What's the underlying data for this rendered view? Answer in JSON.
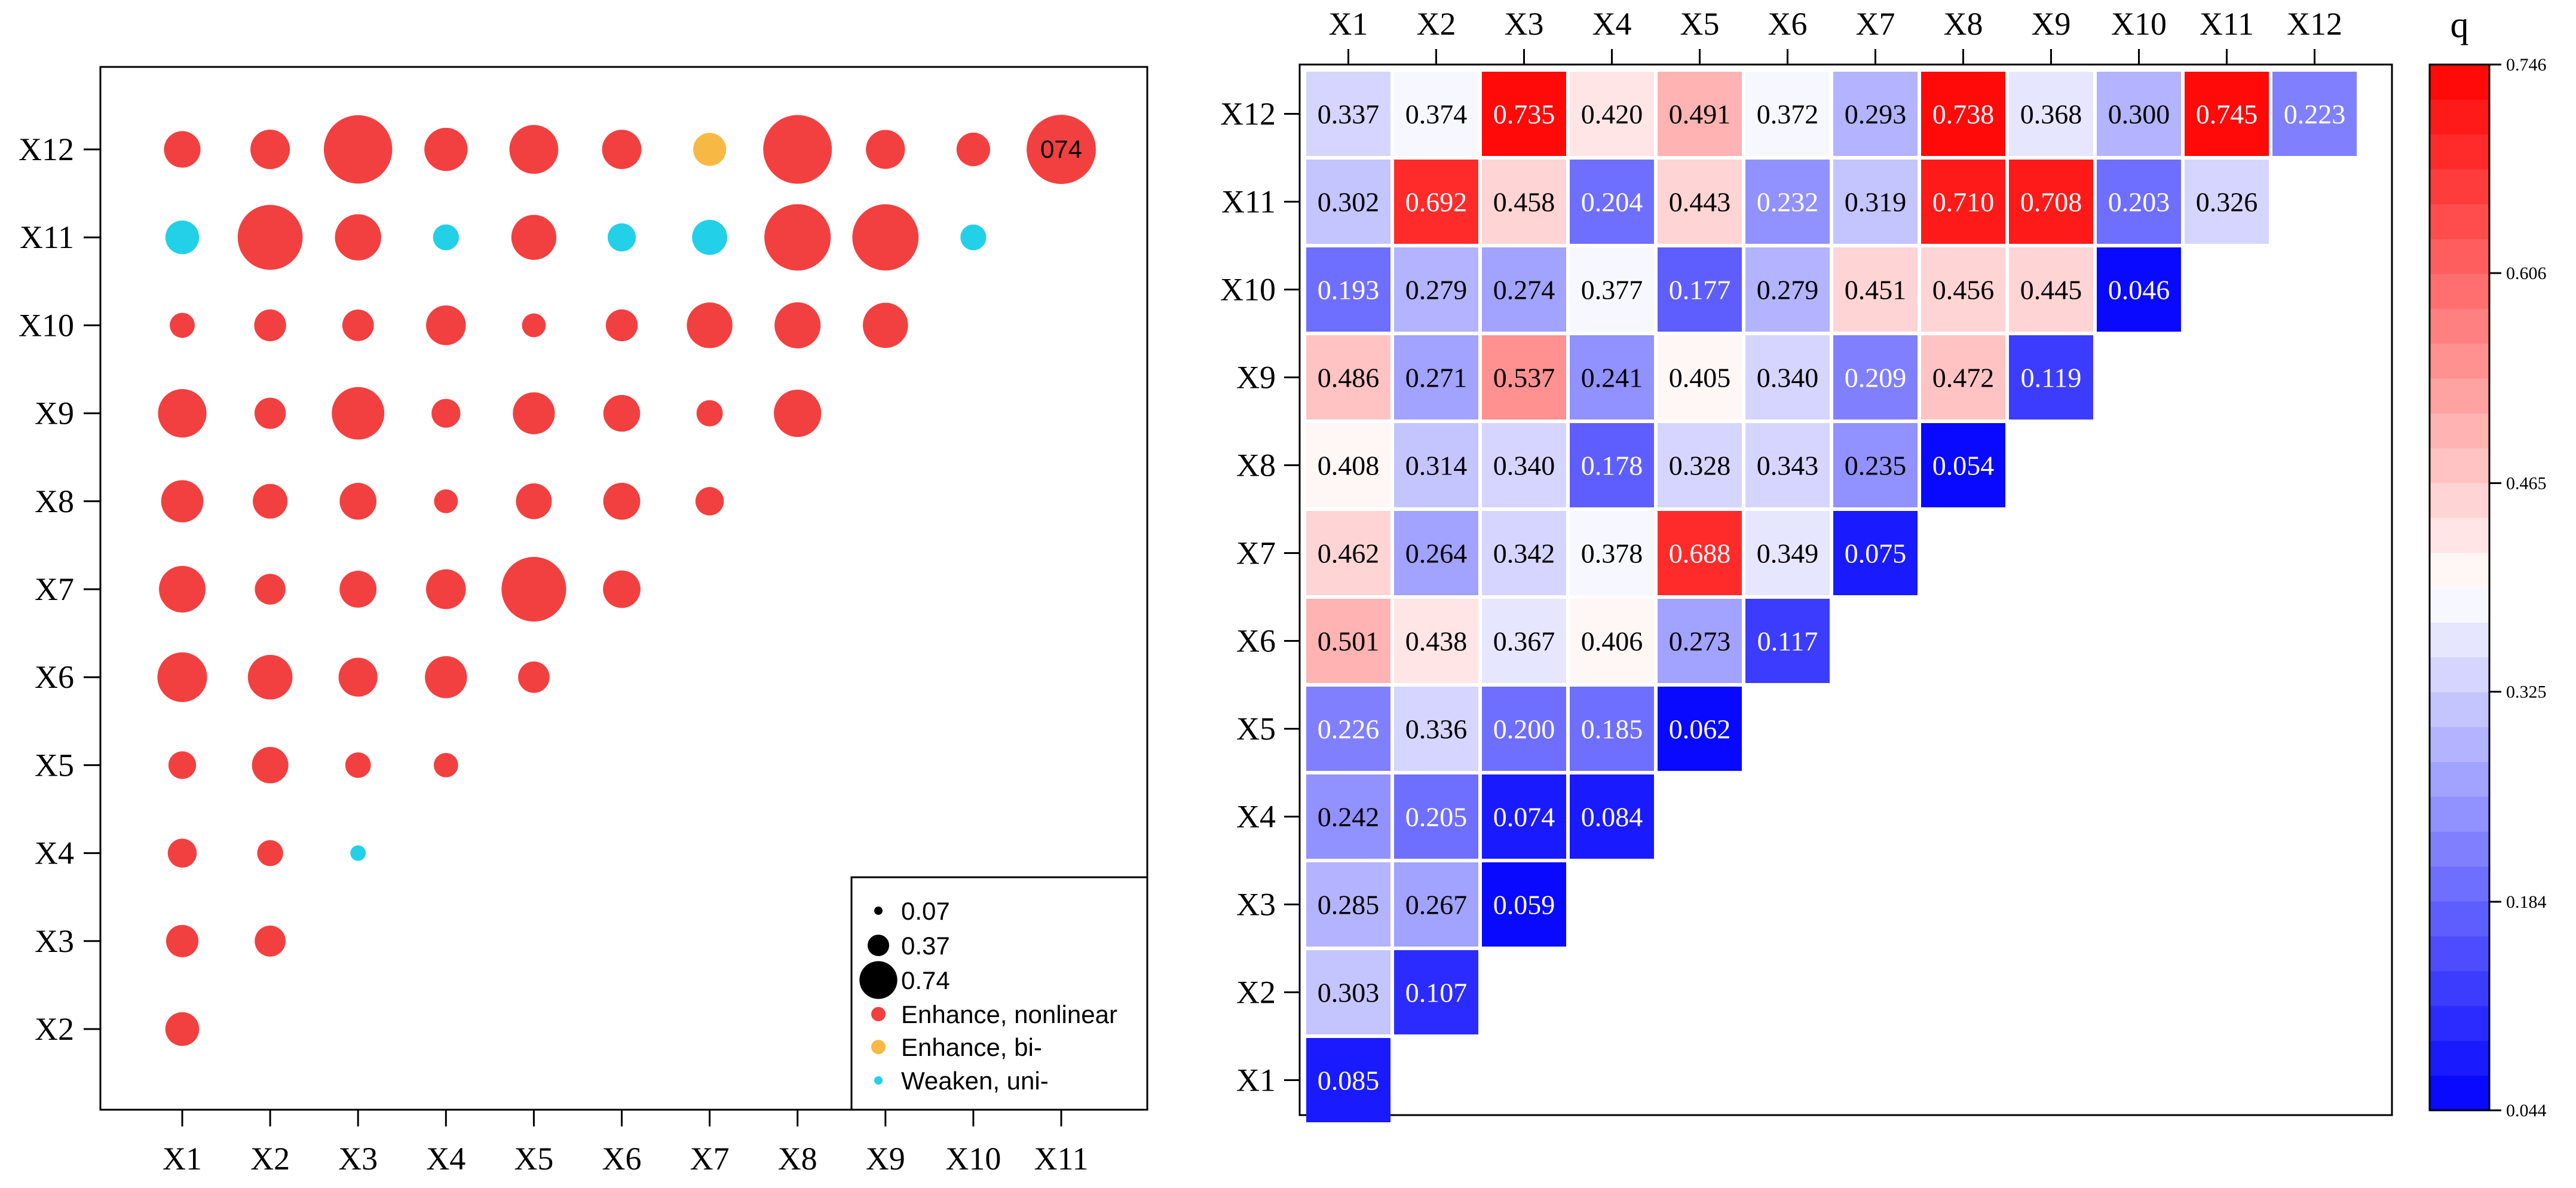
{
  "chart_data": [
    {
      "type": "scatter",
      "title": "",
      "subtype": "bubble interaction matrix",
      "x_labels": [
        "X1",
        "X2",
        "X3",
        "X4",
        "X5",
        "X6",
        "X7",
        "X8",
        "X9",
        "X10",
        "X11"
      ],
      "y_labels": [
        "X2",
        "X3",
        "X4",
        "X5",
        "X6",
        "X7",
        "X8",
        "X9",
        "X10",
        "X11",
        "X12"
      ],
      "categories": [
        {
          "key": "nonlinear",
          "label": "Enhance, nonlinear",
          "color": "#f24040"
        },
        {
          "key": "bi",
          "label": "Enhance, bi-",
          "color": "#f7b944"
        },
        {
          "key": "uni",
          "label": "Weaken, uni-",
          "color": "#22d0e8"
        }
      ],
      "size_legend": [
        {
          "label": "0.07",
          "value": 0.07
        },
        {
          "label": "0.37",
          "value": 0.37
        },
        {
          "label": "0.74",
          "value": 0.74
        }
      ],
      "annotation": {
        "text": "074",
        "x": "X11",
        "y": "X12"
      },
      "points": [
        {
          "x": "X1",
          "y": "X12",
          "v": 0.337,
          "c": "nonlinear"
        },
        {
          "x": "X2",
          "y": "X12",
          "v": 0.374,
          "c": "nonlinear"
        },
        {
          "x": "X3",
          "y": "X12",
          "v": 0.735,
          "c": "nonlinear"
        },
        {
          "x": "X4",
          "y": "X12",
          "v": 0.42,
          "c": "nonlinear"
        },
        {
          "x": "X5",
          "y": "X12",
          "v": 0.491,
          "c": "nonlinear"
        },
        {
          "x": "X6",
          "y": "X12",
          "v": 0.372,
          "c": "nonlinear"
        },
        {
          "x": "X7",
          "y": "X12",
          "v": 0.293,
          "c": "bi"
        },
        {
          "x": "X8",
          "y": "X12",
          "v": 0.738,
          "c": "nonlinear"
        },
        {
          "x": "X9",
          "y": "X12",
          "v": 0.368,
          "c": "nonlinear"
        },
        {
          "x": "X10",
          "y": "X12",
          "v": 0.3,
          "c": "nonlinear"
        },
        {
          "x": "X11",
          "y": "X12",
          "v": 0.745,
          "c": "nonlinear"
        },
        {
          "x": "X1",
          "y": "X11",
          "v": 0.302,
          "c": "uni"
        },
        {
          "x": "X2",
          "y": "X11",
          "v": 0.692,
          "c": "nonlinear"
        },
        {
          "x": "X3",
          "y": "X11",
          "v": 0.458,
          "c": "nonlinear"
        },
        {
          "x": "X4",
          "y": "X11",
          "v": 0.204,
          "c": "uni"
        },
        {
          "x": "X5",
          "y": "X11",
          "v": 0.443,
          "c": "nonlinear"
        },
        {
          "x": "X6",
          "y": "X11",
          "v": 0.232,
          "c": "uni"
        },
        {
          "x": "X7",
          "y": "X11",
          "v": 0.319,
          "c": "uni"
        },
        {
          "x": "X8",
          "y": "X11",
          "v": 0.71,
          "c": "nonlinear"
        },
        {
          "x": "X9",
          "y": "X11",
          "v": 0.708,
          "c": "nonlinear"
        },
        {
          "x": "X10",
          "y": "X11",
          "v": 0.203,
          "c": "uni"
        },
        {
          "x": "X1",
          "y": "X10",
          "v": 0.193,
          "c": "nonlinear"
        },
        {
          "x": "X2",
          "y": "X10",
          "v": 0.279,
          "c": "nonlinear"
        },
        {
          "x": "X3",
          "y": "X10",
          "v": 0.274,
          "c": "nonlinear"
        },
        {
          "x": "X4",
          "y": "X10",
          "v": 0.377,
          "c": "nonlinear"
        },
        {
          "x": "X5",
          "y": "X10",
          "v": 0.177,
          "c": "nonlinear"
        },
        {
          "x": "X6",
          "y": "X10",
          "v": 0.279,
          "c": "nonlinear"
        },
        {
          "x": "X7",
          "y": "X10",
          "v": 0.451,
          "c": "nonlinear"
        },
        {
          "x": "X8",
          "y": "X10",
          "v": 0.456,
          "c": "nonlinear"
        },
        {
          "x": "X9",
          "y": "X10",
          "v": 0.445,
          "c": "nonlinear"
        },
        {
          "x": "X1",
          "y": "X9",
          "v": 0.486,
          "c": "nonlinear"
        },
        {
          "x": "X2",
          "y": "X9",
          "v": 0.271,
          "c": "nonlinear"
        },
        {
          "x": "X3",
          "y": "X9",
          "v": 0.537,
          "c": "nonlinear"
        },
        {
          "x": "X4",
          "y": "X9",
          "v": 0.241,
          "c": "nonlinear"
        },
        {
          "x": "X5",
          "y": "X9",
          "v": 0.405,
          "c": "nonlinear"
        },
        {
          "x": "X6",
          "y": "X9",
          "v": 0.34,
          "c": "nonlinear"
        },
        {
          "x": "X7",
          "y": "X9",
          "v": 0.209,
          "c": "nonlinear"
        },
        {
          "x": "X8",
          "y": "X9",
          "v": 0.472,
          "c": "nonlinear"
        },
        {
          "x": "X1",
          "y": "X8",
          "v": 0.408,
          "c": "nonlinear"
        },
        {
          "x": "X2",
          "y": "X8",
          "v": 0.314,
          "c": "nonlinear"
        },
        {
          "x": "X3",
          "y": "X8",
          "v": 0.34,
          "c": "nonlinear"
        },
        {
          "x": "X4",
          "y": "X8",
          "v": 0.178,
          "c": "nonlinear"
        },
        {
          "x": "X5",
          "y": "X8",
          "v": 0.328,
          "c": "nonlinear"
        },
        {
          "x": "X6",
          "y": "X8",
          "v": 0.343,
          "c": "nonlinear"
        },
        {
          "x": "X7",
          "y": "X8",
          "v": 0.235,
          "c": "nonlinear"
        },
        {
          "x": "X1",
          "y": "X7",
          "v": 0.462,
          "c": "nonlinear"
        },
        {
          "x": "X2",
          "y": "X7",
          "v": 0.264,
          "c": "nonlinear"
        },
        {
          "x": "X3",
          "y": "X7",
          "v": 0.342,
          "c": "nonlinear"
        },
        {
          "x": "X4",
          "y": "X7",
          "v": 0.378,
          "c": "nonlinear"
        },
        {
          "x": "X5",
          "y": "X7",
          "v": 0.688,
          "c": "nonlinear"
        },
        {
          "x": "X6",
          "y": "X7",
          "v": 0.349,
          "c": "nonlinear"
        },
        {
          "x": "X1",
          "y": "X6",
          "v": 0.501,
          "c": "nonlinear"
        },
        {
          "x": "X2",
          "y": "X6",
          "v": 0.438,
          "c": "nonlinear"
        },
        {
          "x": "X3",
          "y": "X6",
          "v": 0.367,
          "c": "nonlinear"
        },
        {
          "x": "X4",
          "y": "X6",
          "v": 0.406,
          "c": "nonlinear"
        },
        {
          "x": "X5",
          "y": "X6",
          "v": 0.273,
          "c": "nonlinear"
        },
        {
          "x": "X1",
          "y": "X5",
          "v": 0.226,
          "c": "nonlinear"
        },
        {
          "x": "X2",
          "y": "X5",
          "v": 0.336,
          "c": "nonlinear"
        },
        {
          "x": "X3",
          "y": "X5",
          "v": 0.2,
          "c": "nonlinear"
        },
        {
          "x": "X4",
          "y": "X5",
          "v": 0.185,
          "c": "nonlinear"
        },
        {
          "x": "X1",
          "y": "X4",
          "v": 0.242,
          "c": "nonlinear"
        },
        {
          "x": "X2",
          "y": "X4",
          "v": 0.205,
          "c": "nonlinear"
        },
        {
          "x": "X3",
          "y": "X4",
          "v": 0.074,
          "c": "uni"
        },
        {
          "x": "X1",
          "y": "X3",
          "v": 0.285,
          "c": "nonlinear"
        },
        {
          "x": "X2",
          "y": "X3",
          "v": 0.267,
          "c": "nonlinear"
        },
        {
          "x": "X1",
          "y": "X2",
          "v": 0.303,
          "c": "nonlinear"
        }
      ]
    },
    {
      "type": "heatmap",
      "title": "",
      "colorbar_title": "q",
      "colorbar_ticks": [
        "0.746",
        "0.606",
        "0.465",
        "0.325",
        "0.184",
        "0.044"
      ],
      "colorbar_range": [
        0.044,
        0.746
      ],
      "colorbar_levels": 30,
      "x_labels": [
        "X1",
        "X2",
        "X3",
        "X4",
        "X5",
        "X6",
        "X7",
        "X8",
        "X9",
        "X10",
        "X11",
        "X12"
      ],
      "y_labels": [
        "X1",
        "X2",
        "X3",
        "X4",
        "X5",
        "X6",
        "X7",
        "X8",
        "X9",
        "X10",
        "X11",
        "X12"
      ],
      "rows": [
        {
          "y": "X12",
          "values": [
            "0.337",
            "0.374",
            "0.735",
            "0.420",
            "0.491",
            "0.372",
            "0.293",
            "0.738",
            "0.368",
            "0.300",
            "0.745",
            "0.223"
          ]
        },
        {
          "y": "X11",
          "values": [
            "0.302",
            "0.692",
            "0.458",
            "0.204",
            "0.443",
            "0.232",
            "0.319",
            "0.710",
            "0.708",
            "0.203",
            "0.326"
          ]
        },
        {
          "y": "X10",
          "values": [
            "0.193",
            "0.279",
            "0.274",
            "0.377",
            "0.177",
            "0.279",
            "0.451",
            "0.456",
            "0.445",
            "0.046"
          ]
        },
        {
          "y": "X9",
          "values": [
            "0.486",
            "0.271",
            "0.537",
            "0.241",
            "0.405",
            "0.340",
            "0.209",
            "0.472",
            "0.119"
          ]
        },
        {
          "y": "X8",
          "values": [
            "0.408",
            "0.314",
            "0.340",
            "0.178",
            "0.328",
            "0.343",
            "0.235",
            "0.054"
          ]
        },
        {
          "y": "X7",
          "values": [
            "0.462",
            "0.264",
            "0.342",
            "0.378",
            "0.688",
            "0.349",
            "0.075"
          ]
        },
        {
          "y": "X6",
          "values": [
            "0.501",
            "0.438",
            "0.367",
            "0.406",
            "0.273",
            "0.117"
          ]
        },
        {
          "y": "X5",
          "values": [
            "0.226",
            "0.336",
            "0.200",
            "0.185",
            "0.062"
          ]
        },
        {
          "y": "X4",
          "values": [
            "0.242",
            "0.205",
            "0.074",
            "0.084"
          ]
        },
        {
          "y": "X3",
          "values": [
            "0.285",
            "0.267",
            "0.059"
          ]
        },
        {
          "y": "X2",
          "values": [
            "0.303",
            "0.107"
          ]
        },
        {
          "y": "X1",
          "values": [
            "0.085"
          ]
        }
      ]
    }
  ]
}
